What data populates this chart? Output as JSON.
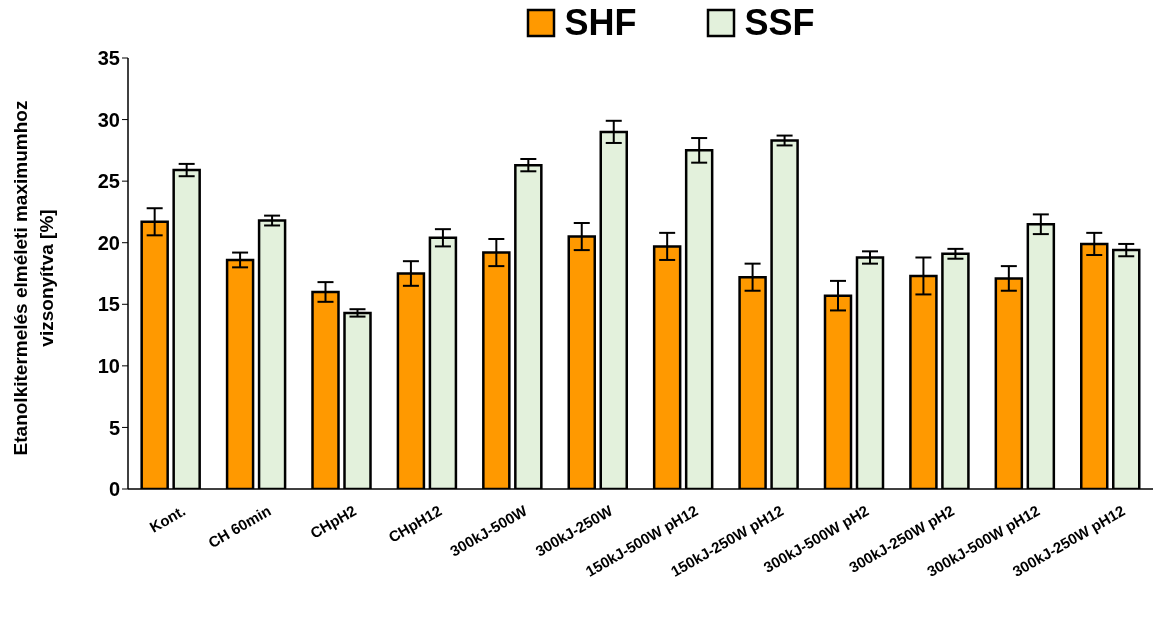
{
  "chart_data": {
    "type": "bar",
    "ylabel": "Etanolkitermelés elméleti maximumhoz vizsonyítva [%]",
    "categories": [
      "Kont.",
      "CH 60min",
      "CHpH2",
      "CHpH12",
      "300kJ-500W",
      "300kJ-250W",
      "150kJ-500W pH12",
      "150kJ-250W pH12",
      "300kJ-500W pH2",
      "300kJ-250W pH2",
      "300kJ-500W pH12",
      "300kJ-250W pH12"
    ],
    "series": [
      {
        "name": "SHF",
        "color": "#ff9900",
        "values": [
          21.7,
          18.6,
          16.0,
          17.5,
          19.2,
          20.5,
          19.7,
          17.2,
          15.7,
          17.3,
          17.1,
          19.9
        ],
        "errors": [
          1.1,
          0.6,
          0.8,
          1.0,
          1.1,
          1.1,
          1.1,
          1.1,
          1.2,
          1.5,
          1.0,
          0.9
        ]
      },
      {
        "name": "SSF",
        "color": "#e3f1dc",
        "values": [
          25.9,
          21.8,
          14.3,
          20.4,
          26.3,
          29.0,
          27.5,
          28.3,
          18.8,
          19.1,
          21.5,
          19.4
        ],
        "errors": [
          0.5,
          0.4,
          0.3,
          0.7,
          0.5,
          0.9,
          1.0,
          0.4,
          0.5,
          0.4,
          0.8,
          0.5
        ]
      }
    ],
    "ylim": [
      0,
      35
    ],
    "yticks": [
      0,
      5,
      10,
      15,
      20,
      25,
      30,
      35
    ],
    "grid": false,
    "legend": "top"
  }
}
